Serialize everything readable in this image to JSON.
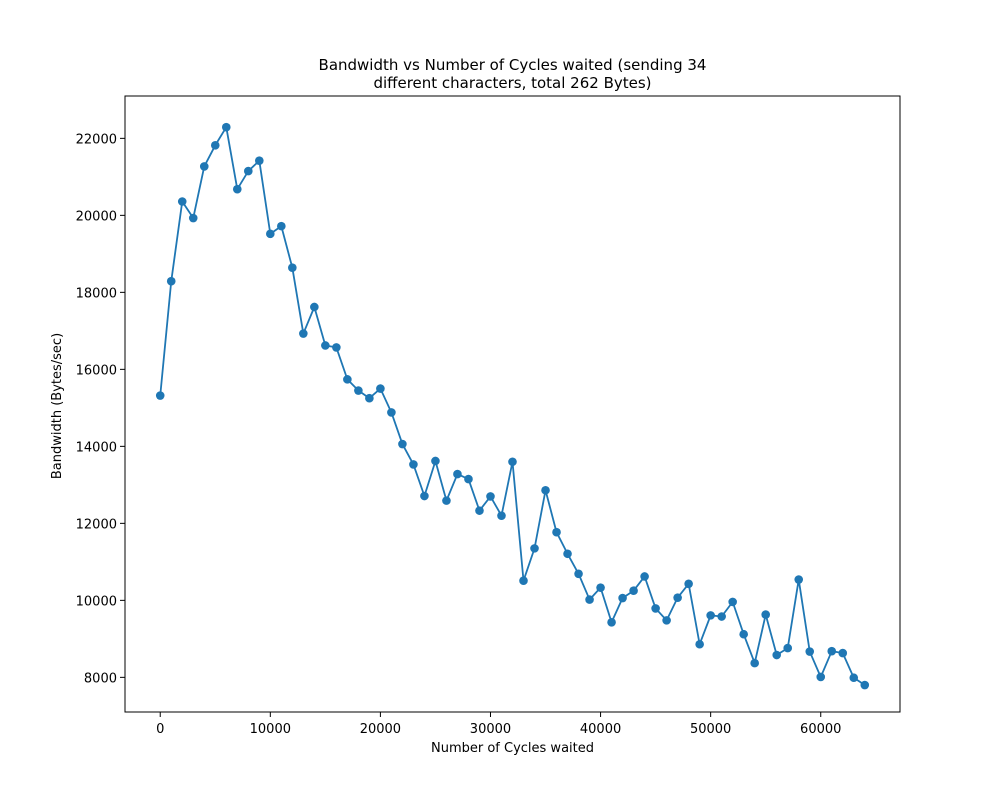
{
  "chart_data": {
    "type": "line",
    "title_lines": [
      "Bandwidth vs Number of Cycles waited (sending 34",
      "different characters, total 262 Bytes)"
    ],
    "xlabel": "Number of Cycles waited",
    "ylabel": "Bandwidth (Bytes/sec)",
    "xlim": [
      -3200,
      67200
    ],
    "ylim": [
      7100,
      23100
    ],
    "xticks": [
      0,
      10000,
      20000,
      30000,
      40000,
      50000,
      60000
    ],
    "xtick_labels": [
      "0",
      "10000",
      "20000",
      "30000",
      "40000",
      "50000",
      "60000"
    ],
    "yticks": [
      8000,
      10000,
      12000,
      14000,
      16000,
      18000,
      20000,
      22000
    ],
    "ytick_labels": [
      "8000",
      "10000",
      "12000",
      "14000",
      "16000",
      "18000",
      "20000",
      "22000"
    ],
    "grid": false,
    "legend": "none",
    "marker": "circle",
    "color": "#1f77b4",
    "x": [
      0,
      1000,
      2000,
      3000,
      4000,
      5000,
      6000,
      7000,
      8000,
      9000,
      10000,
      11000,
      12000,
      13000,
      14000,
      15000,
      16000,
      17000,
      18000,
      19000,
      20000,
      21000,
      22000,
      23000,
      24000,
      25000,
      26000,
      27000,
      28000,
      29000,
      30000,
      31000,
      32000,
      33000,
      34000,
      35000,
      36000,
      37000,
      38000,
      39000,
      40000,
      41000,
      42000,
      43000,
      44000,
      45000,
      46000,
      47000,
      48000,
      49000,
      50000,
      51000,
      52000,
      53000,
      54000,
      55000,
      56000,
      57000,
      58000,
      59000,
      60000,
      61000,
      62000,
      63000,
      64000
    ],
    "y": [
      15320,
      18290,
      20360,
      19930,
      21270,
      21820,
      22290,
      20680,
      21150,
      21420,
      19520,
      19720,
      18640,
      16930,
      17620,
      16620,
      16570,
      15740,
      15450,
      15250,
      15500,
      14880,
      14060,
      13530,
      12710,
      13620,
      12590,
      13280,
      13150,
      12330,
      12700,
      12200,
      13600,
      10510,
      11350,
      12860,
      11770,
      11210,
      10690,
      10020,
      10330,
      9430,
      10060,
      10250,
      10620,
      9790,
      9480,
      10070,
      10430,
      8860,
      9610,
      9580,
      9960,
      9120,
      8370,
      9630,
      8580,
      8760,
      10540,
      8670,
      8010,
      8680,
      8630,
      7990,
      7800
    ]
  }
}
